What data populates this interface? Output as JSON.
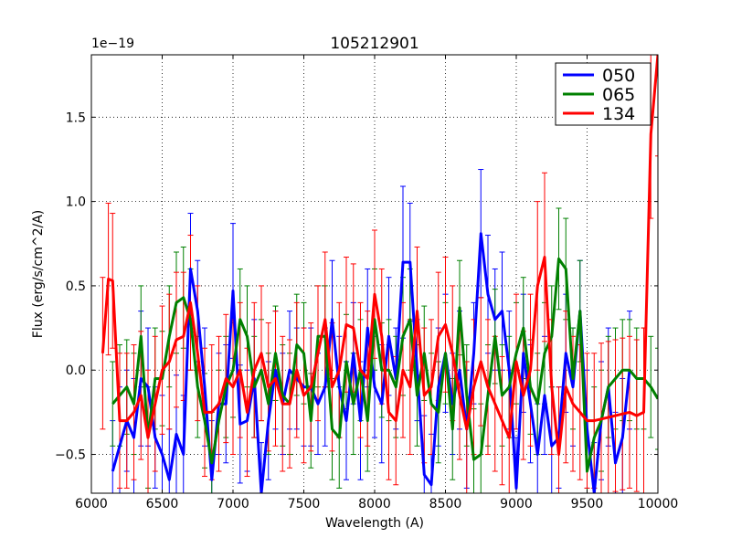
{
  "chart_data": {
    "type": "line",
    "title": "105212901",
    "xlabel": "Wavelength (A)",
    "ylabel": "Flux (erg/s/cm^2/A)",
    "offset_text": "1e−19",
    "xlim": [
      6000,
      10000
    ],
    "ylim": [
      -0.73,
      1.87
    ],
    "xticks": [
      6000,
      6500,
      7000,
      7500,
      8000,
      8500,
      9000,
      9500,
      10000
    ],
    "xtick_labels": [
      "6000",
      "6500",
      "7000",
      "7500",
      "8000",
      "8500",
      "9000",
      "9500",
      "10000"
    ],
    "yticks": [
      -0.5,
      0.0,
      0.5,
      1.0,
      1.5
    ],
    "ytick_labels": [
      "−0.5",
      "0.0",
      "0.5",
      "1.0",
      "1.5"
    ],
    "grid": true,
    "legend_position": "top-right",
    "series": [
      {
        "name": "050",
        "color": "#0000ff",
        "x": [
          6150,
          6200,
          6250,
          6300,
          6350,
          6400,
          6450,
          6500,
          6550,
          6600,
          6650,
          6700,
          6750,
          6800,
          6850,
          6900,
          6950,
          7000,
          7050,
          7100,
          7150,
          7200,
          7250,
          7300,
          7350,
          7400,
          7450,
          7500,
          7550,
          7600,
          7650,
          7700,
          7750,
          7800,
          7850,
          7900,
          7950,
          8000,
          8050,
          8100,
          8150,
          8200,
          8250,
          8300,
          8350,
          8400,
          8450,
          8500,
          8550,
          8600,
          8650,
          8700,
          8750,
          8800,
          8850,
          8900,
          8950,
          9000,
          9050,
          9100,
          9150,
          9200,
          9250,
          9300,
          9350,
          9400,
          9450,
          9500,
          9550,
          9600,
          9650,
          9700,
          9750,
          9800,
          9850,
          9900
        ],
        "y": [
          -0.6,
          -0.45,
          -0.3,
          -0.4,
          -0.05,
          -0.1,
          -0.4,
          -0.5,
          -0.65,
          -0.38,
          -0.5,
          0.6,
          0.35,
          -0.1,
          -0.65,
          -0.2,
          -0.2,
          0.47,
          -0.32,
          -0.3,
          -0.05,
          -0.73,
          -0.3,
          0.0,
          -0.2,
          0.0,
          -0.05,
          -0.1,
          -0.1,
          -0.2,
          -0.1,
          0.3,
          -0.1,
          -0.3,
          0.1,
          -0.3,
          0.25,
          -0.1,
          -0.2,
          0.2,
          -0.05,
          0.64,
          0.64,
          0.0,
          -0.62,
          -0.68,
          -0.1,
          0.1,
          -0.2,
          0.0,
          -0.35,
          0.1,
          0.81,
          0.45,
          0.3,
          0.35,
          0.0,
          -0.7,
          0.1,
          -0.2,
          -0.5,
          -0.15,
          -0.45,
          -0.4,
          0.1,
          -0.1,
          0.35,
          -0.35,
          -0.73,
          -0.3,
          -0.1,
          -0.55,
          -0.4,
          0.0,
          null,
          null
        ],
        "err": [
          0.3,
          0.35,
          0.3,
          0.35,
          0.4,
          0.35,
          0.3,
          0.35,
          0.3,
          0.35,
          0.35,
          0.33,
          0.3,
          0.35,
          0.35,
          0.3,
          0.35,
          0.4,
          0.35,
          0.3,
          0.35,
          0.3,
          0.35,
          0.35,
          0.3,
          0.35,
          0.3,
          0.35,
          0.35,
          0.3,
          0.35,
          0.35,
          0.3,
          0.35,
          0.3,
          0.35,
          0.35,
          0.3,
          0.35,
          0.35,
          0.3,
          0.45,
          0.35,
          0.3,
          0.35,
          0.3,
          0.35,
          0.35,
          0.3,
          0.35,
          0.35,
          0.3,
          0.38,
          0.35,
          0.3,
          0.35,
          0.35,
          0.3,
          0.35,
          0.35,
          0.3,
          0.35,
          0.35,
          0.3,
          0.35,
          0.35,
          0.3,
          0.35,
          0.3,
          0.35,
          0.35,
          0.3,
          0.35,
          0.35,
          0.3,
          0.35
        ]
      },
      {
        "name": "065",
        "color": "#008000",
        "x": [
          6150,
          6200,
          6250,
          6300,
          6350,
          6400,
          6450,
          6500,
          6550,
          6600,
          6650,
          6700,
          6750,
          6800,
          6850,
          6900,
          6950,
          7000,
          7050,
          7100,
          7150,
          7200,
          7250,
          7300,
          7350,
          7400,
          7450,
          7500,
          7550,
          7600,
          7650,
          7700,
          7750,
          7800,
          7850,
          7900,
          7950,
          8000,
          8050,
          8100,
          8150,
          8200,
          8250,
          8300,
          8350,
          8400,
          8450,
          8500,
          8550,
          8600,
          8650,
          8700,
          8750,
          8800,
          8850,
          8900,
          8950,
          9000,
          9050,
          9100,
          9150,
          9200,
          9250,
          9300,
          9350,
          9400,
          9450,
          9500,
          9550,
          9600,
          9650,
          9700,
          9750,
          9800,
          9850,
          9900,
          9950,
          10000
        ],
        "y": [
          -0.2,
          -0.15,
          -0.1,
          -0.2,
          0.2,
          -0.4,
          -0.05,
          -0.05,
          0.2,
          0.4,
          0.43,
          0.3,
          -0.1,
          -0.3,
          -0.55,
          -0.3,
          -0.1,
          0.0,
          0.3,
          0.2,
          -0.1,
          0.0,
          -0.2,
          0.1,
          -0.15,
          -0.2,
          0.15,
          0.1,
          -0.3,
          0.2,
          0.2,
          -0.35,
          -0.4,
          0.05,
          -0.2,
          0.0,
          -0.3,
          0.3,
          0.0,
          0.0,
          -0.1,
          0.2,
          0.3,
          -0.15,
          0.1,
          -0.2,
          -0.25,
          0.1,
          -0.35,
          0.37,
          -0.15,
          -0.53,
          -0.5,
          -0.15,
          0.2,
          -0.15,
          -0.1,
          0.1,
          0.25,
          -0.1,
          -0.2,
          0.1,
          0.2,
          0.66,
          0.6,
          -0.05,
          0.35,
          -0.6,
          -0.4,
          -0.3,
          -0.1,
          -0.05,
          0.0,
          0.0,
          -0.05,
          -0.05,
          -0.1,
          -0.17
        ],
        "err": [
          0.25,
          0.3,
          0.28,
          0.3,
          0.3,
          0.3,
          0.3,
          0.28,
          0.3,
          0.3,
          0.3,
          0.3,
          0.3,
          0.28,
          0.3,
          0.3,
          0.3,
          0.28,
          0.3,
          0.3,
          0.3,
          0.3,
          0.3,
          0.28,
          0.3,
          0.3,
          0.3,
          0.3,
          0.28,
          0.3,
          0.3,
          0.3,
          0.3,
          0.28,
          0.3,
          0.3,
          0.3,
          0.3,
          0.28,
          0.3,
          0.3,
          0.35,
          0.3,
          0.3,
          0.28,
          0.3,
          0.3,
          0.3,
          0.3,
          0.28,
          0.3,
          0.3,
          0.3,
          0.3,
          0.28,
          0.3,
          0.3,
          0.3,
          0.3,
          0.28,
          0.3,
          0.3,
          0.3,
          0.3,
          0.3,
          0.3,
          0.3,
          0.3,
          0.3,
          0.3,
          0.3,
          0.3,
          0.3,
          0.3,
          0.3,
          0.3,
          0.3,
          0.3
        ]
      },
      {
        "name": "134",
        "color": "#ff0000",
        "x": [
          6080,
          6120,
          6150,
          6200,
          6250,
          6300,
          6350,
          6400,
          6450,
          6500,
          6550,
          6600,
          6650,
          6700,
          6750,
          6800,
          6850,
          6900,
          6950,
          7000,
          7050,
          7100,
          7150,
          7200,
          7250,
          7300,
          7350,
          7400,
          7450,
          7500,
          7550,
          7600,
          7650,
          7700,
          7750,
          7800,
          7850,
          7900,
          7950,
          8000,
          8050,
          8100,
          8150,
          8200,
          8250,
          8300,
          8350,
          8400,
          8450,
          8500,
          8550,
          8600,
          8650,
          8700,
          8750,
          8800,
          8850,
          8900,
          8950,
          9000,
          9050,
          9100,
          9150,
          9200,
          9250,
          9300,
          9350,
          9400,
          9450,
          9500,
          9550,
          9600,
          9650,
          9700,
          9750,
          9800,
          9850,
          9900,
          9950,
          10000
        ],
        "y": [
          0.1,
          0.54,
          0.53,
          -0.3,
          -0.3,
          -0.25,
          -0.15,
          -0.4,
          -0.2,
          0.0,
          0.05,
          0.18,
          0.2,
          0.4,
          0.1,
          -0.25,
          -0.25,
          -0.2,
          -0.05,
          -0.1,
          0.0,
          -0.25,
          0.0,
          0.1,
          -0.1,
          -0.05,
          -0.2,
          -0.2,
          0.0,
          -0.15,
          -0.1,
          0.1,
          0.3,
          -0.1,
          0.0,
          0.27,
          0.25,
          0.0,
          -0.05,
          0.45,
          0.2,
          -0.25,
          -0.3,
          0.0,
          -0.1,
          0.35,
          -0.15,
          -0.1,
          0.2,
          0.27,
          0.1,
          -0.15,
          -0.35,
          -0.1,
          0.05,
          -0.1,
          -0.2,
          -0.3,
          -0.4,
          0.05,
          -0.15,
          0.0,
          0.5,
          0.67,
          -0.1,
          -0.5,
          -0.1,
          -0.2,
          -0.25,
          -0.3,
          -0.3,
          -0.29,
          -0.28,
          -0.27,
          -0.26,
          -0.25,
          -0.27,
          -0.25,
          1.4,
          1.87
        ],
        "err": [
          0.45,
          0.45,
          0.4,
          0.4,
          0.4,
          0.4,
          0.38,
          0.4,
          0.4,
          0.38,
          0.4,
          0.4,
          0.38,
          0.4,
          0.4,
          0.38,
          0.4,
          0.4,
          0.38,
          0.4,
          0.4,
          0.38,
          0.4,
          0.4,
          0.38,
          0.4,
          0.4,
          0.38,
          0.4,
          0.4,
          0.38,
          0.4,
          0.4,
          0.38,
          0.4,
          0.4,
          0.38,
          0.4,
          0.4,
          0.38,
          0.4,
          0.4,
          0.38,
          0.4,
          0.4,
          0.38,
          0.4,
          0.4,
          0.38,
          0.4,
          0.4,
          0.38,
          0.4,
          0.4,
          0.38,
          0.4,
          0.4,
          0.38,
          0.4,
          0.4,
          0.38,
          0.45,
          0.5,
          0.5,
          0.4,
          0.4,
          0.45,
          0.4,
          0.4,
          0.4,
          0.4,
          0.45,
          0.45,
          0.45,
          0.45,
          0.45,
          0.45,
          0.5,
          0.5,
          0.6
        ]
      }
    ]
  }
}
